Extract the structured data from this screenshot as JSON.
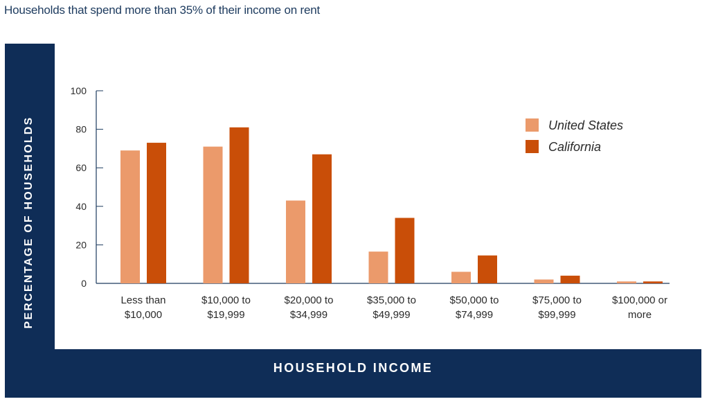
{
  "page": {
    "title": "Households that spend more than 35% of their income on rent"
  },
  "chart_data": {
    "type": "bar",
    "title": "Households that spend more than 35% of their income on rent",
    "xlabel": "HOUSEHOLD INCOME",
    "ylabel": "PERCENTAGE OF HOUSEHOLDS",
    "ylim": [
      0,
      100
    ],
    "yticks": [
      "0",
      "20",
      "40",
      "60",
      "80",
      "100"
    ],
    "grid": false,
    "legend_position": "top-right",
    "categories": [
      [
        "Less than",
        "$10,000"
      ],
      [
        "$10,000 to",
        "$19,999"
      ],
      [
        "$20,000 to",
        "$34,999"
      ],
      [
        "$35,000 to",
        "$49,999"
      ],
      [
        "$50,000 to",
        "$74,999"
      ],
      [
        "$75,000 to",
        "$99,999"
      ],
      [
        "$100,000 or",
        "more"
      ]
    ],
    "series": [
      {
        "name": "United States",
        "color": "#eb9a6b",
        "values": [
          69,
          71,
          43,
          16.5,
          6,
          2,
          1
        ]
      },
      {
        "name": "California",
        "color": "#c94e08",
        "values": [
          73,
          81,
          67,
          34,
          14.5,
          4,
          1
        ]
      }
    ]
  }
}
